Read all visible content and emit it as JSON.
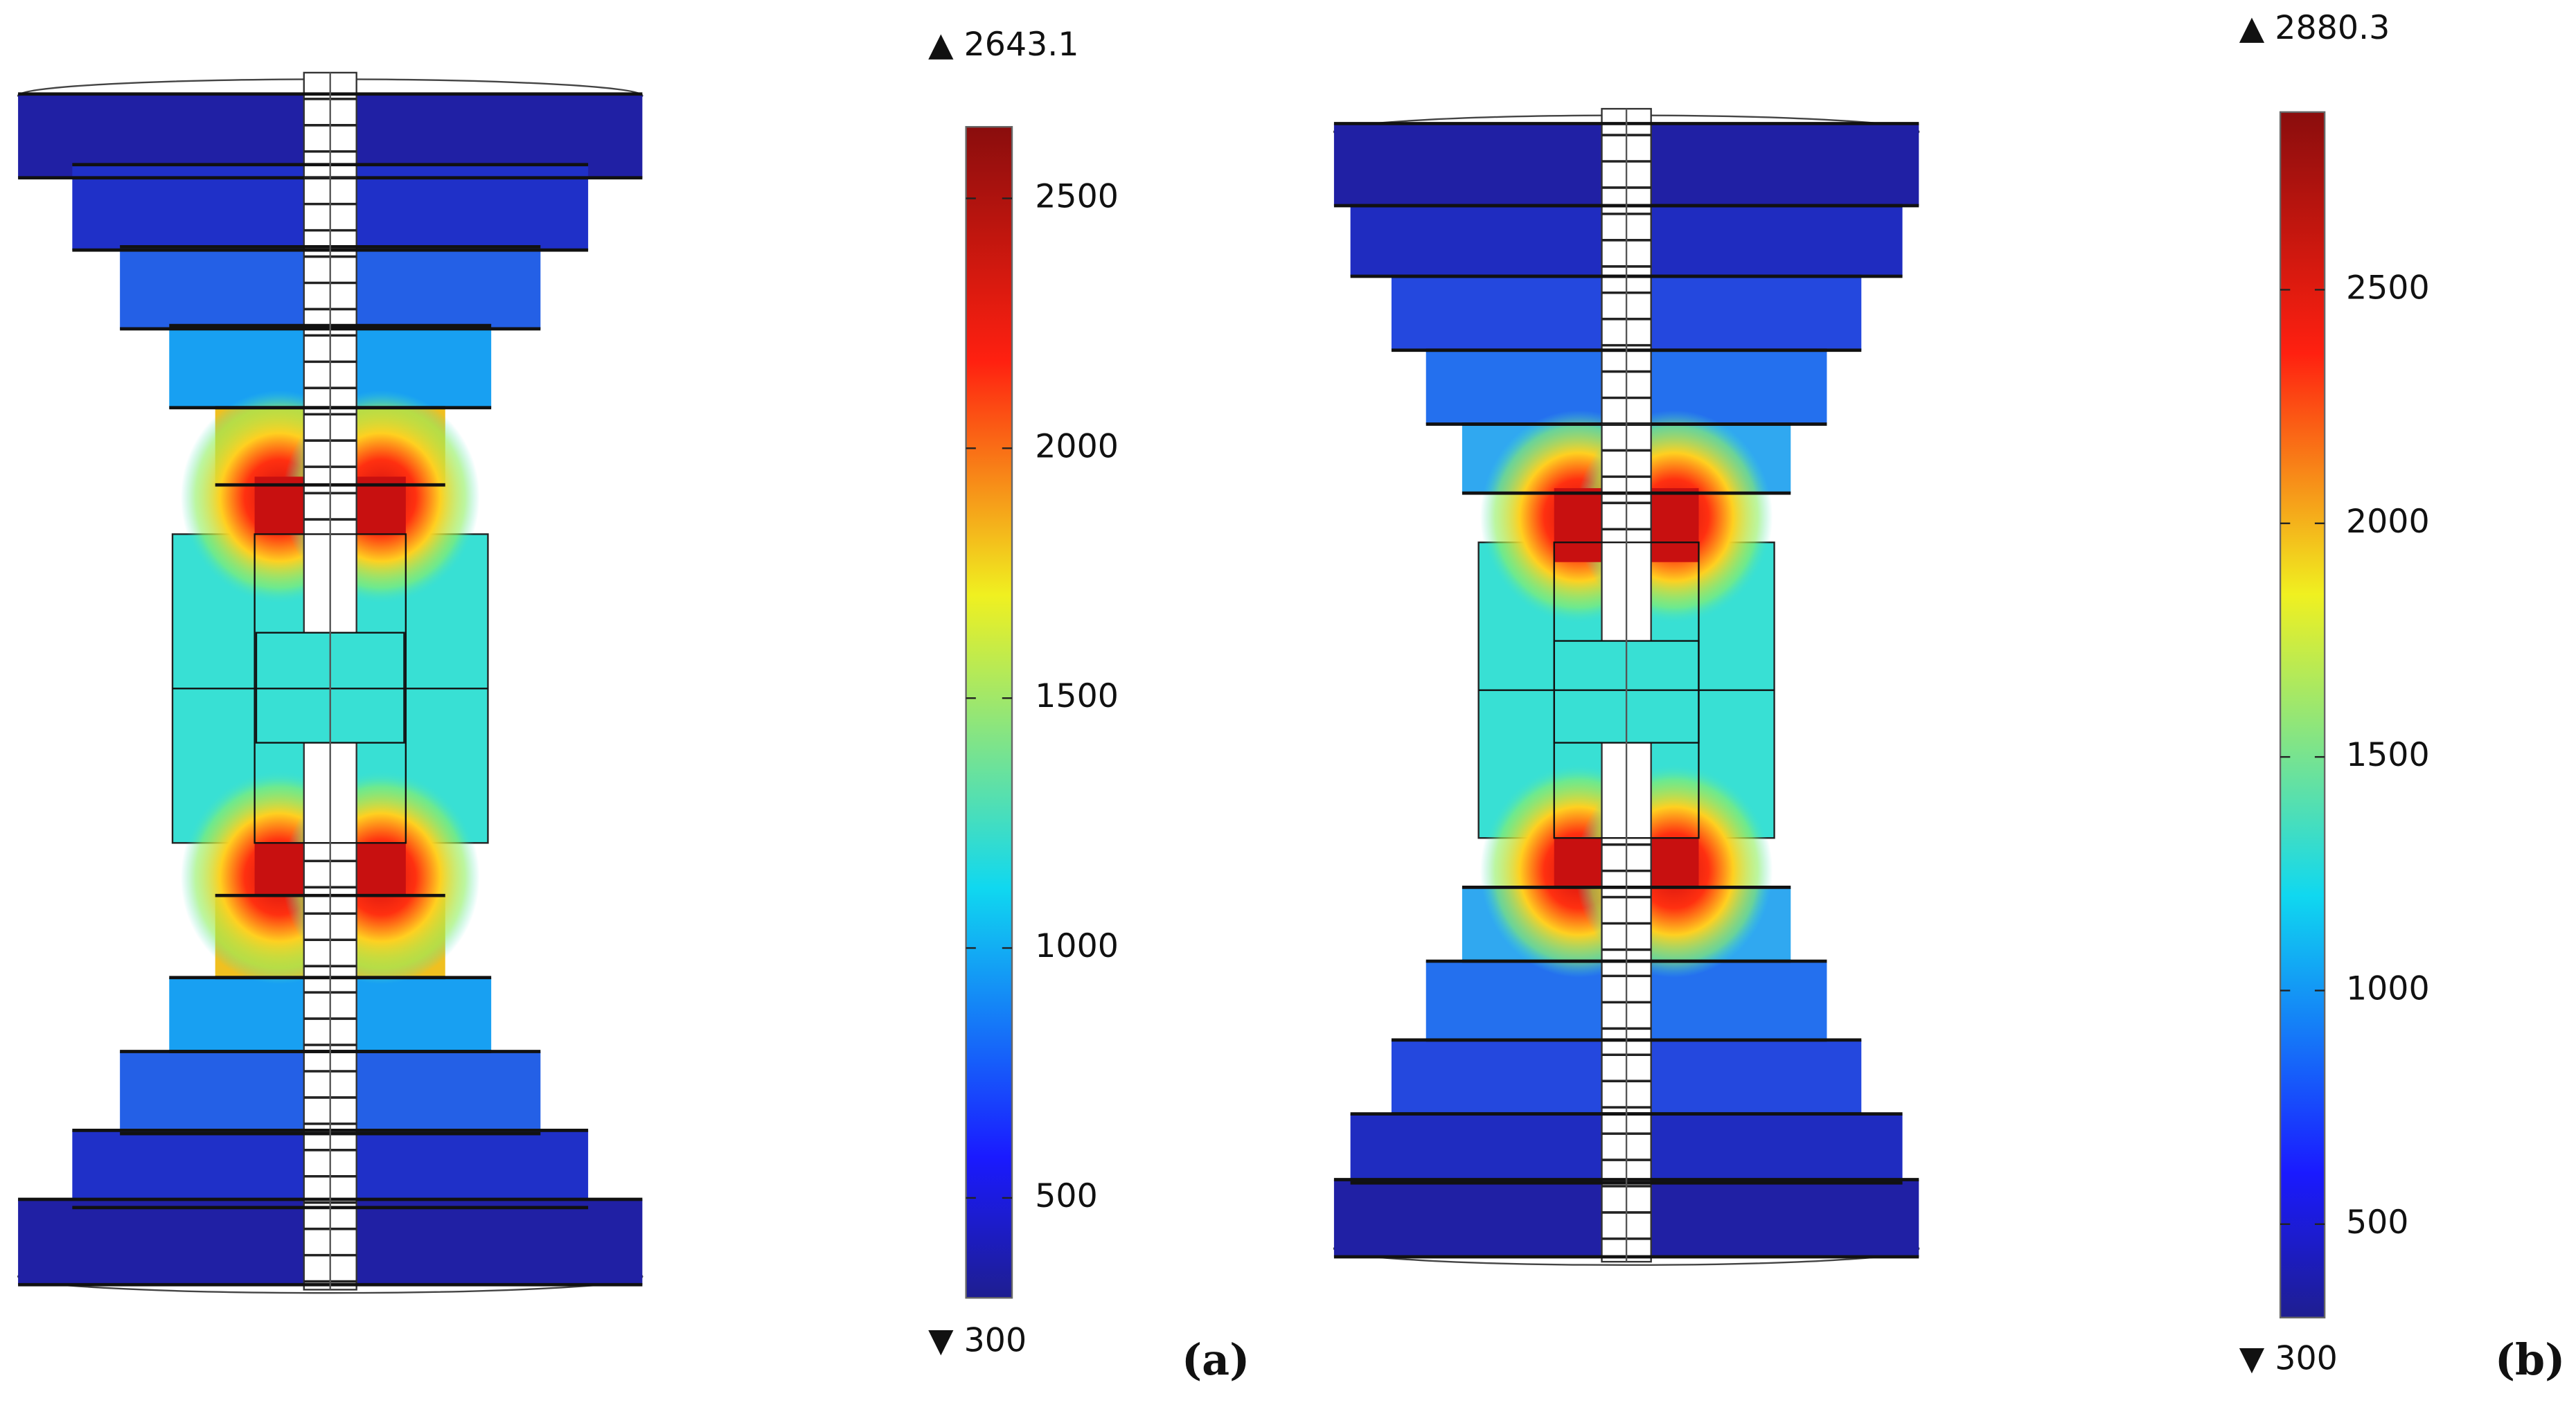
{
  "panels": [
    {
      "label": "(a)",
      "colorbar": {
        "max": {
          "value": 2643.1,
          "label": "▲ 2643.1"
        },
        "min": {
          "value": 300,
          "label": "▼ 300"
        },
        "ticks": [
          500,
          1000,
          1500,
          2000,
          2500
        ]
      }
    },
    {
      "label": "(b)",
      "colorbar": {
        "max": {
          "value": 2880.3,
          "label": "▲ 2880.3"
        },
        "min": {
          "value": 300,
          "label": "▼ 300"
        },
        "ticks": [
          500,
          1000,
          1500,
          2000,
          2500
        ]
      }
    }
  ]
}
